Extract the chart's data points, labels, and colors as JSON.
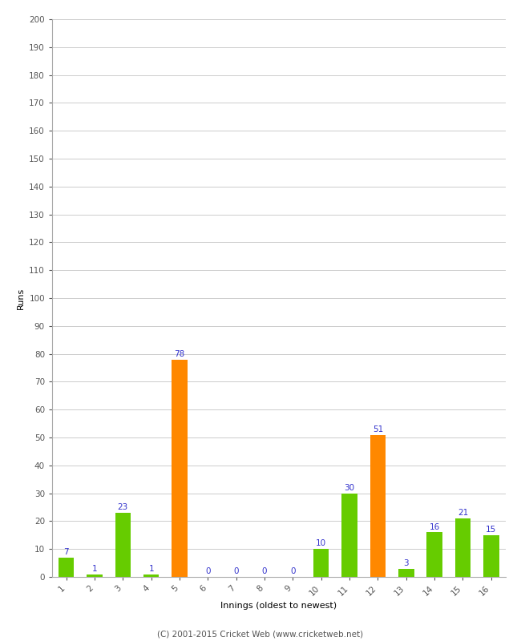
{
  "innings": [
    1,
    2,
    3,
    4,
    5,
    6,
    7,
    8,
    9,
    10,
    11,
    12,
    13,
    14,
    15,
    16
  ],
  "values": [
    7,
    1,
    23,
    1,
    78,
    0,
    0,
    0,
    0,
    10,
    30,
    51,
    3,
    16,
    21,
    15
  ],
  "colors": [
    "#66cc00",
    "#66cc00",
    "#66cc00",
    "#66cc00",
    "#ff8800",
    "#66cc00",
    "#66cc00",
    "#66cc00",
    "#66cc00",
    "#66cc00",
    "#66cc00",
    "#ff8800",
    "#66cc00",
    "#66cc00",
    "#66cc00",
    "#66cc00"
  ],
  "xlabel": "Innings (oldest to newest)",
  "ylabel": "Runs",
  "ylim": [
    0,
    200
  ],
  "yticks": [
    0,
    10,
    20,
    30,
    40,
    50,
    60,
    70,
    80,
    90,
    100,
    110,
    120,
    130,
    140,
    150,
    160,
    170,
    180,
    190,
    200
  ],
  "label_color": "#3333cc",
  "label_fontsize": 7.5,
  "axis_label_fontsize": 8,
  "tick_fontsize": 7.5,
  "background_color": "#ffffff",
  "footer": "(C) 2001-2015 Cricket Web (www.cricketweb.net)",
  "footer_fontsize": 7.5,
  "bar_width": 0.55,
  "grid_color": "#cccccc",
  "spine_color": "#aaaaaa"
}
